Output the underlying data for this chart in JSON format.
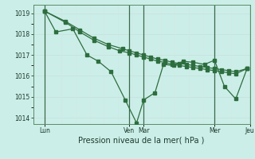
{
  "background_color": "#cceee8",
  "grid_color_major": "#b0d8d0",
  "grid_color_minor": "#d8f0ec",
  "line_color": "#2d6e3e",
  "title": "Pression niveau de la mer( hPa )",
  "ylim": [
    1013.7,
    1019.4
  ],
  "yticks": [
    1014,
    1015,
    1016,
    1017,
    1018,
    1019
  ],
  "xlim": [
    -0.3,
    15.0
  ],
  "vline_positions": [
    0.5,
    6.5,
    7.5,
    12.5,
    15.0
  ],
  "xtick_positions": [
    0.5,
    6.5,
    7.5,
    12.5,
    15.0
  ],
  "xtick_labels": [
    "Lun",
    "Ven",
    "Mar",
    "Mer",
    "Jeu"
  ],
  "s1_x": [
    0.5,
    1.3,
    2.5,
    3.5,
    4.3,
    5.2,
    6.2,
    7.0,
    7.5,
    8.3,
    8.9,
    9.6,
    10.3,
    11.0,
    11.8,
    12.5,
    13.2,
    14.0,
    14.8
  ],
  "s1_y": [
    1019.1,
    1018.1,
    1018.25,
    1017.0,
    1016.7,
    1016.2,
    1014.85,
    1013.75,
    1014.85,
    1015.2,
    1016.55,
    1016.5,
    1016.7,
    1016.65,
    1016.55,
    1016.75,
    1015.5,
    1014.9,
    1016.35
  ],
  "s2_x": [
    0.5,
    2.0,
    3.0,
    4.0,
    5.0,
    6.0,
    6.5,
    7.0,
    7.5,
    8.0,
    8.5,
    9.0,
    9.5,
    10.0,
    10.5,
    11.0,
    11.5,
    12.0,
    12.5,
    13.0,
    13.5,
    14.0,
    14.8
  ],
  "s2_y": [
    1019.1,
    1018.6,
    1018.2,
    1017.8,
    1017.5,
    1017.3,
    1017.2,
    1017.1,
    1017.0,
    1016.9,
    1016.8,
    1016.75,
    1016.65,
    1016.6,
    1016.55,
    1016.5,
    1016.45,
    1016.4,
    1016.35,
    1016.3,
    1016.25,
    1016.2,
    1016.35
  ],
  "s3_x": [
    0.5,
    2.0,
    3.0,
    4.0,
    5.0,
    5.8,
    6.5,
    7.0,
    7.5,
    8.0,
    8.5,
    9.0,
    9.5,
    10.0,
    10.5,
    11.0,
    11.5,
    12.0,
    12.5,
    13.0,
    13.5,
    14.0,
    14.8
  ],
  "s3_y": [
    1019.1,
    1018.55,
    1018.1,
    1017.7,
    1017.4,
    1017.2,
    1017.1,
    1017.0,
    1016.9,
    1016.8,
    1016.7,
    1016.65,
    1016.55,
    1016.5,
    1016.45,
    1016.4,
    1016.35,
    1016.3,
    1016.25,
    1016.2,
    1016.15,
    1016.1,
    1016.35
  ]
}
